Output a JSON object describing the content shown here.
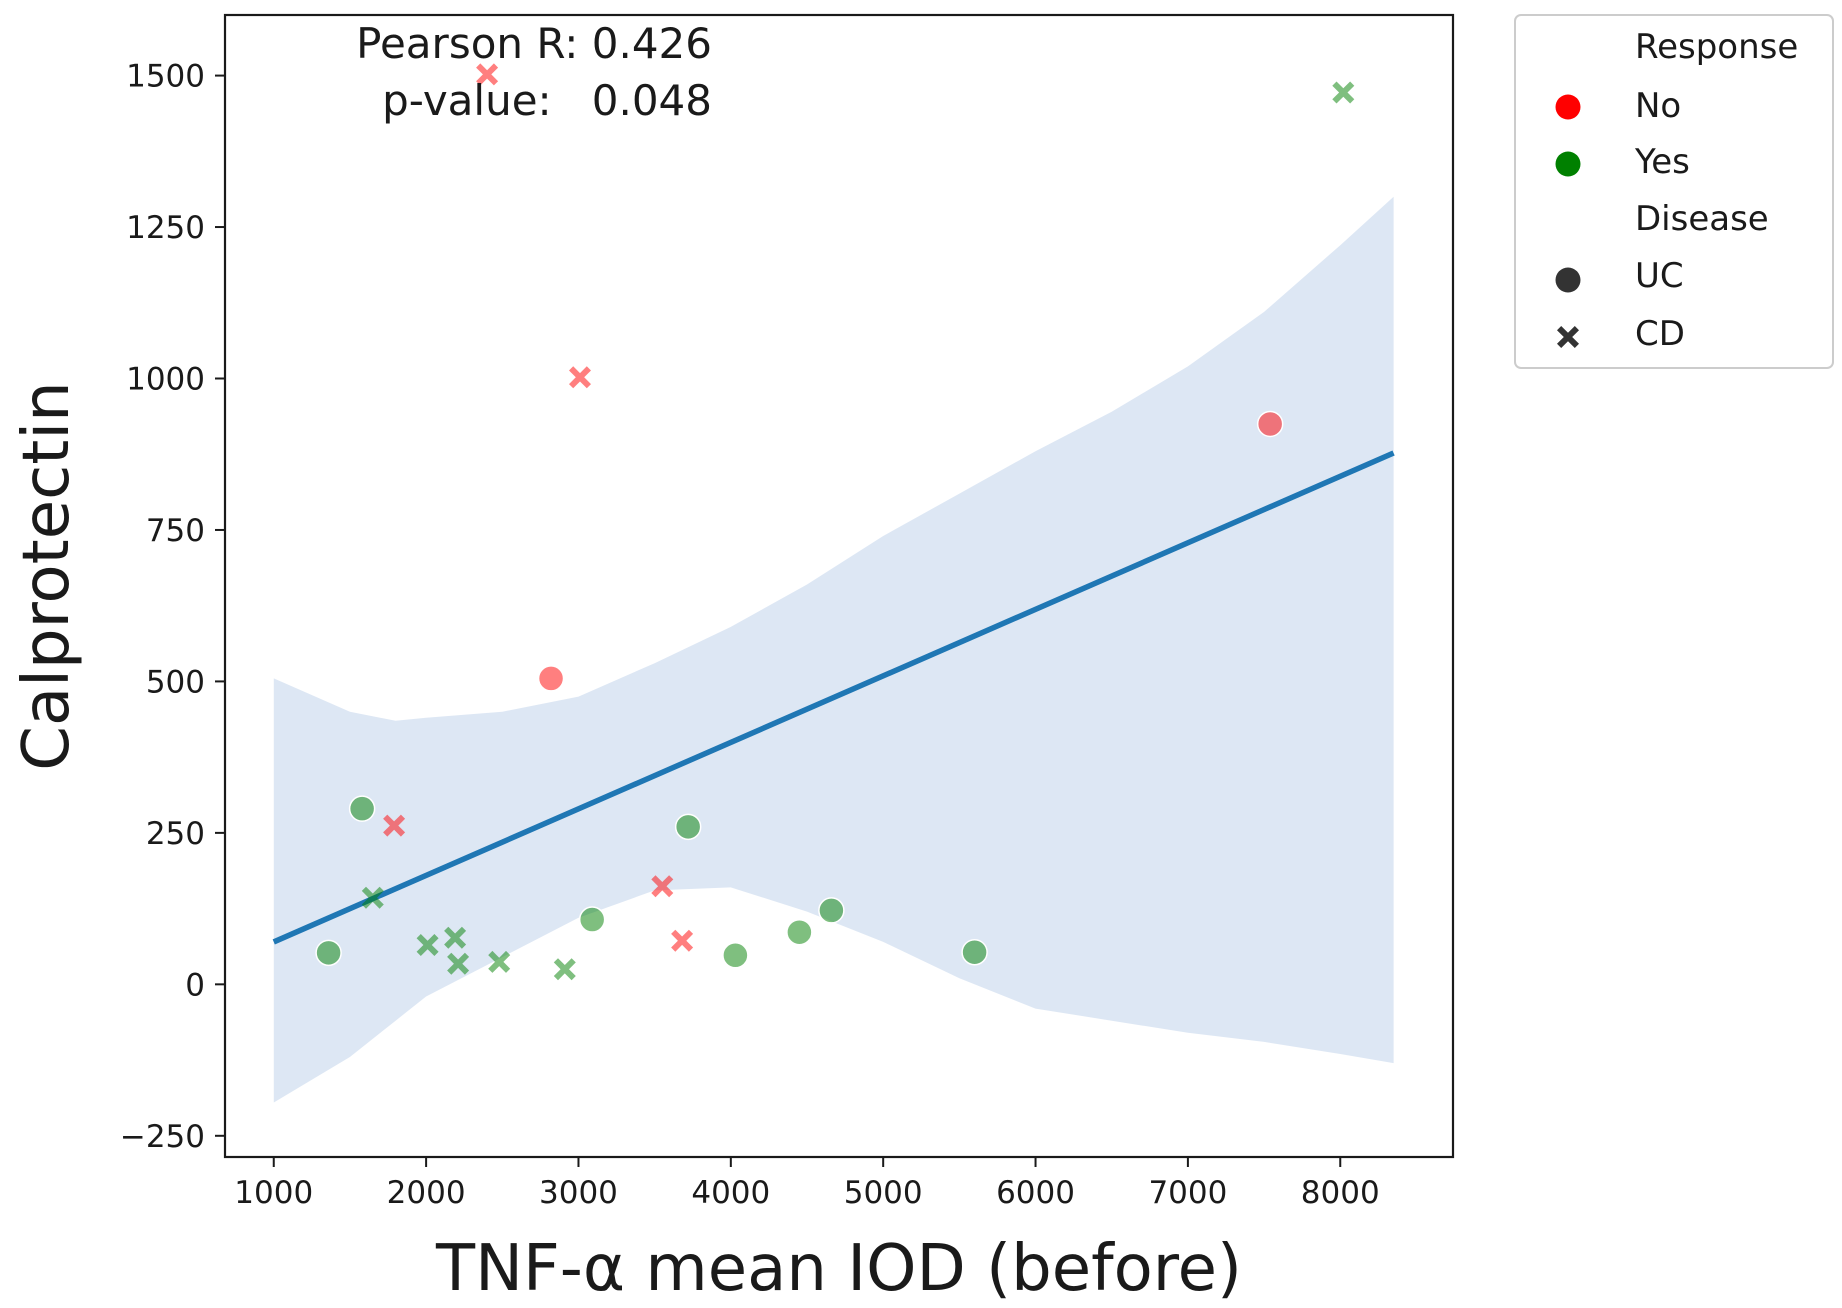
{
  "chart_data": {
    "type": "scatter",
    "title": "",
    "xlabel": "TNF-α mean IOD (before)",
    "ylabel": "Calprotectin",
    "xlim": [
      680,
      8740
    ],
    "ylim": [
      -285,
      1600
    ],
    "xticks": [
      1000,
      2000,
      3000,
      4000,
      5000,
      6000,
      7000,
      8000
    ],
    "xtick_labels": [
      "1000",
      "2000",
      "3000",
      "4000",
      "5000",
      "6000",
      "7000",
      "8000"
    ],
    "yticks": [
      -250,
      0,
      250,
      500,
      750,
      1000,
      1250,
      1500
    ],
    "ytick_labels": [
      "−250",
      "0",
      "250",
      "500",
      "750",
      "1000",
      "1250",
      "1500"
    ],
    "grid": false,
    "annotation": {
      "line1": "Pearson R: 0.426",
      "line2": "p-value:   0.048"
    },
    "colors": {
      "No": "#ff0000",
      "Yes": "#008000",
      "regression": "#1f77b4",
      "ci_band": "#dbe6f3"
    },
    "regression": {
      "x": [
        1000,
        8350
      ],
      "y": [
        70,
        877
      ]
    },
    "confidence_band": {
      "x": [
        1000,
        1500,
        1800,
        2000,
        2500,
        3000,
        3500,
        4000,
        4500,
        5000,
        5500,
        6000,
        6500,
        7000,
        7500,
        8000,
        8350
      ],
      "upper": [
        505,
        450,
        435,
        440,
        450,
        475,
        530,
        590,
        660,
        740,
        810,
        880,
        945,
        1020,
        1110,
        1220,
        1300
      ],
      "lower": [
        -195,
        -120,
        -60,
        -20,
        45,
        110,
        155,
        160,
        120,
        70,
        10,
        -40,
        -60,
        -80,
        -95,
        -115,
        -130
      ]
    },
    "legend": {
      "position": "outside-right",
      "response_title": "Response",
      "response_items": [
        "No",
        "Yes"
      ],
      "disease_title": "Disease",
      "disease_items": [
        "UC",
        "CD"
      ]
    },
    "series": [
      {
        "response": "No",
        "disease": "UC",
        "points": [
          {
            "x": 2820,
            "y": 505
          },
          {
            "x": 7540,
            "y": 925
          }
        ]
      },
      {
        "response": "No",
        "disease": "CD",
        "points": [
          {
            "x": 2400,
            "y": 1502
          },
          {
            "x": 3010,
            "y": 1002
          },
          {
            "x": 1790,
            "y": 262
          },
          {
            "x": 3550,
            "y": 162
          },
          {
            "x": 3680,
            "y": 72
          }
        ]
      },
      {
        "response": "Yes",
        "disease": "UC",
        "points": [
          {
            "x": 1580,
            "y": 290
          },
          {
            "x": 1360,
            "y": 52
          },
          {
            "x": 3090,
            "y": 107
          },
          {
            "x": 3720,
            "y": 260
          },
          {
            "x": 4030,
            "y": 48
          },
          {
            "x": 4450,
            "y": 86
          },
          {
            "x": 4660,
            "y": 122
          },
          {
            "x": 5600,
            "y": 53
          }
        ]
      },
      {
        "response": "Yes",
        "disease": "CD",
        "points": [
          {
            "x": 8020,
            "y": 1472
          },
          {
            "x": 1650,
            "y": 143
          },
          {
            "x": 2010,
            "y": 65
          },
          {
            "x": 2190,
            "y": 77
          },
          {
            "x": 2210,
            "y": 34
          },
          {
            "x": 2480,
            "y": 37
          },
          {
            "x": 2910,
            "y": 25
          }
        ]
      }
    ]
  }
}
